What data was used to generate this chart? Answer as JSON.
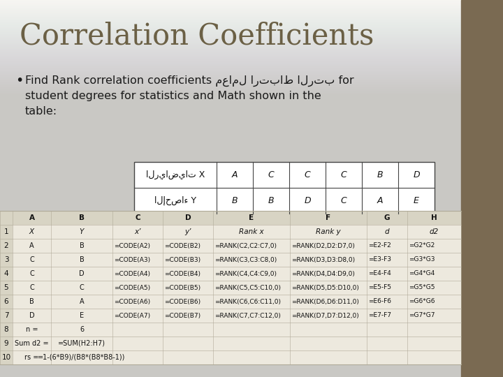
{
  "title": "Correlation Coefficients",
  "bg_top_color": "#f5f3ef",
  "bg_bottom_color": "#e0dbd0",
  "right_panel_color": "#7a6a52",
  "bullet_text_line1_ltr": "Find Rank correlation coefficients ",
  "bullet_text_line1_rtl": "معامل ارتباط الرتب",
  "bullet_text_line1_end": " for",
  "bullet_text_line2": "student degrees for statistics and Math shown in the",
  "bullet_text_line3": "table:",
  "small_table_header_col1": "الرياضيات X",
  "small_table_header_vals": [
    "A",
    "C",
    "C",
    "C",
    "B",
    "D"
  ],
  "small_table_row2_col1": "الإحصاء Y",
  "small_table_row2_vals": [
    "B",
    "B",
    "D",
    "C",
    "A",
    "E"
  ],
  "ss_col_headers": [
    "",
    "A",
    "B",
    "C",
    "D",
    "E",
    "F",
    "G",
    "H"
  ],
  "ss_row1": [
    "1",
    "X",
    "Y",
    "x’",
    "y’",
    "Rank x",
    "Rank y",
    "d",
    "d2"
  ],
  "ss_row2": [
    "2",
    "A",
    "B",
    "=CODE(A2)",
    "=CODE(B2)",
    "=RANK(C2,C2:C7,0)",
    "=RANK(D2,D2:D7,0)",
    "=E2-F2",
    "=G2*G2"
  ],
  "ss_row3": [
    "3",
    "C",
    "B",
    "=CODE(A3)",
    "=CODE(B3)",
    "=RANK(C3,C3:C8,0)",
    "=RANK(D3,D3:D8,0)",
    "=E3-F3",
    "=G3*G3"
  ],
  "ss_row4": [
    "4",
    "C",
    "D",
    "=CODE(A4)",
    "=CODE(B4)",
    "=RANK(C4,C4:C9,0)",
    "=RANK(D4,D4:D9,0)",
    "=E4-F4",
    "=G4*G4"
  ],
  "ss_row5": [
    "5",
    "C",
    "C",
    "=CODE(A5)",
    "=CODE(B5)",
    "=RANK(C5,C5:C10,0)",
    "=RANK(D5,D5:D10,0)",
    "=E5-F5",
    "=G5*G5"
  ],
  "ss_row6": [
    "6",
    "B",
    "A",
    "=CODE(A6)",
    "=CODE(B6)",
    "=RANK(C6,C6:C11,0)",
    "=RANK(D6,D6:D11,0)",
    "=E6-F6",
    "=G6*G6"
  ],
  "ss_row7": [
    "7",
    "D",
    "E",
    "=CODE(A7)",
    "=CODE(B7)",
    "=RANK(C7,C7:C12,0)",
    "=RANK(D7,D7:D12,0)",
    "=E7-F7",
    "=G7*G7"
  ],
  "ss_row8": [
    "8",
    "n =",
    "6",
    "",
    "",
    "",
    "",
    "",
    ""
  ],
  "ss_row9": [
    "9",
    "Sum d2 =",
    "=SUM(H2:H7)",
    "",
    "",
    "",
    "",
    "",
    ""
  ],
  "ss_row10": [
    "10",
    "rs =",
    "=1-(6*B9)/(B8*(B8*B8-1))",
    "",
    "",
    "",
    "",
    "",
    ""
  ],
  "ss_bg": "#ede9de",
  "ss_hdr_bg": "#d8d4c4",
  "grid_color": "#b0aa98",
  "title_color": "#6b6045",
  "body_text_color": "#1a1a1a"
}
